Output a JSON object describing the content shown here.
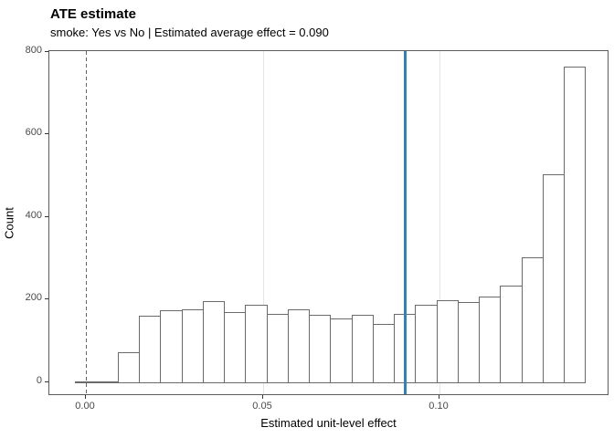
{
  "header": {
    "title": "ATE estimate",
    "subtitle": "smoke: Yes vs No | Estimated average effect = 0.090"
  },
  "chart_data": {
    "type": "bar",
    "subtype": "histogram",
    "title": "ATE estimate",
    "subtitle": "smoke: Yes vs No | Estimated average effect = 0.090",
    "xlabel": "Estimated unit-level effect",
    "ylabel": "Count",
    "bin_start": -0.003,
    "bin_width": 0.006,
    "bin_centers": [
      0.0,
      0.006,
      0.012,
      0.018,
      0.024,
      0.03,
      0.036,
      0.042,
      0.048,
      0.054,
      0.06,
      0.066,
      0.072,
      0.078,
      0.084,
      0.09,
      0.096,
      0.102,
      0.108,
      0.114,
      0.12,
      0.126,
      0.132,
      0.138
    ],
    "counts": [
      2,
      2,
      73,
      162,
      175,
      178,
      197,
      170,
      188,
      165,
      177,
      163,
      154,
      164,
      142,
      165,
      188,
      200,
      194,
      208,
      234,
      304,
      504,
      766
    ],
    "x_domain": [
      -0.0103,
      0.1479
    ],
    "y_domain": [
      -34.3,
      802.2
    ],
    "x_ticks": [
      {
        "value": 0.0,
        "label": "0.00"
      },
      {
        "value": 0.05,
        "label": "0.05"
      },
      {
        "value": 0.1,
        "label": "0.10"
      }
    ],
    "y_ticks": [
      {
        "value": 0,
        "label": "0"
      },
      {
        "value": 200,
        "label": "200"
      },
      {
        "value": 400,
        "label": "400"
      },
      {
        "value": 600,
        "label": "600"
      },
      {
        "value": 800,
        "label": "800"
      }
    ],
    "grid": "vertical-major-only",
    "legend": "none",
    "reference_lines": [
      {
        "x": 0.0,
        "style": "dashed",
        "color": "#666666",
        "meaning": "zero effect"
      },
      {
        "x": 0.09,
        "style": "solid",
        "color": "#3182bd",
        "meaning": "estimated average effect"
      }
    ],
    "bar_fill": "#ffffff",
    "bar_stroke": "#6a6a6a",
    "panel_border": "#5c5c5c",
    "gridline_color": "#e5e5e5"
  }
}
